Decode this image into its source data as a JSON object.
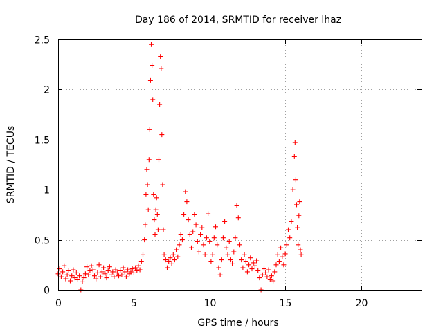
{
  "chart_data": {
    "type": "scatter",
    "title": "Day 186 of 2014, SRMTID for receiver lhaz",
    "xlabel": "GPS time / hours",
    "ylabel": "SRMTID / TECUs",
    "xlim": [
      0,
      24
    ],
    "ylim": [
      0,
      2.5
    ],
    "xticks": [
      0,
      5,
      10,
      15,
      20
    ],
    "xtick_labels": [
      "0",
      "5",
      "10",
      "15",
      "20"
    ],
    "yticks": [
      0,
      0.5,
      1,
      1.5,
      2,
      2.5
    ],
    "ytick_labels": [
      "0",
      "0.5",
      "1",
      "1.5",
      "2",
      "2.5"
    ],
    "grid": true,
    "marker": "+",
    "color": "#ff0000",
    "series": [
      {
        "name": "SRMTID",
        "points": [
          [
            0.0,
            0.16
          ],
          [
            0.1,
            0.21
          ],
          [
            0.2,
            0.13
          ],
          [
            0.3,
            0.18
          ],
          [
            0.4,
            0.24
          ],
          [
            0.5,
            0.11
          ],
          [
            0.6,
            0.15
          ],
          [
            0.7,
            0.19
          ],
          [
            0.8,
            0.09
          ],
          [
            0.9,
            0.14
          ],
          [
            1.0,
            0.2
          ],
          [
            1.1,
            0.12
          ],
          [
            1.2,
            0.17
          ],
          [
            1.3,
            0.1
          ],
          [
            1.4,
            0.14
          ],
          [
            1.5,
            0.0
          ],
          [
            1.6,
            0.08
          ],
          [
            1.7,
            0.12
          ],
          [
            1.8,
            0.16
          ],
          [
            1.9,
            0.23
          ],
          [
            2.0,
            0.15
          ],
          [
            2.1,
            0.19
          ],
          [
            2.2,
            0.24
          ],
          [
            2.3,
            0.2
          ],
          [
            2.4,
            0.14
          ],
          [
            2.5,
            0.11
          ],
          [
            2.6,
            0.17
          ],
          [
            2.7,
            0.25
          ],
          [
            2.8,
            0.13
          ],
          [
            2.9,
            0.18
          ],
          [
            3.0,
            0.22
          ],
          [
            3.1,
            0.16
          ],
          [
            3.2,
            0.12
          ],
          [
            3.3,
            0.19
          ],
          [
            3.4,
            0.23
          ],
          [
            3.5,
            0.15
          ],
          [
            3.6,
            0.18
          ],
          [
            3.7,
            0.13
          ],
          [
            3.8,
            0.2
          ],
          [
            3.9,
            0.17
          ],
          [
            4.0,
            0.14
          ],
          [
            4.1,
            0.19
          ],
          [
            4.2,
            0.15
          ],
          [
            4.3,
            0.22
          ],
          [
            4.4,
            0.18
          ],
          [
            4.5,
            0.13
          ],
          [
            4.6,
            0.2
          ],
          [
            4.7,
            0.16
          ],
          [
            4.8,
            0.18
          ],
          [
            4.9,
            0.21
          ],
          [
            5.0,
            0.17
          ],
          [
            5.1,
            0.22
          ],
          [
            5.2,
            0.19
          ],
          [
            5.3,
            0.24
          ],
          [
            5.4,
            0.2
          ],
          [
            5.5,
            0.28
          ],
          [
            5.6,
            0.35
          ],
          [
            5.7,
            0.5
          ],
          [
            5.75,
            0.65
          ],
          [
            5.8,
            0.95
          ],
          [
            5.85,
            1.2
          ],
          [
            5.9,
            1.05
          ],
          [
            5.95,
            0.8
          ],
          [
            6.0,
            1.3
          ],
          [
            6.05,
            1.6
          ],
          [
            6.1,
            2.09
          ],
          [
            6.15,
            2.45
          ],
          [
            6.2,
            2.24
          ],
          [
            6.25,
            1.9
          ],
          [
            6.3,
            0.95
          ],
          [
            6.35,
            0.7
          ],
          [
            6.4,
            0.55
          ],
          [
            6.45,
            0.8
          ],
          [
            6.5,
            0.92
          ],
          [
            6.55,
            0.75
          ],
          [
            6.6,
            0.6
          ],
          [
            6.65,
            1.3
          ],
          [
            6.7,
            1.85
          ],
          [
            6.75,
            2.33
          ],
          [
            6.8,
            2.21
          ],
          [
            6.85,
            1.55
          ],
          [
            6.9,
            1.05
          ],
          [
            6.95,
            0.6
          ],
          [
            7.0,
            0.35
          ],
          [
            7.1,
            0.3
          ],
          [
            7.2,
            0.22
          ],
          [
            7.3,
            0.28
          ],
          [
            7.4,
            0.32
          ],
          [
            7.5,
            0.26
          ],
          [
            7.6,
            0.35
          ],
          [
            7.7,
            0.3
          ],
          [
            7.8,
            0.4
          ],
          [
            7.9,
            0.33
          ],
          [
            8.0,
            0.45
          ],
          [
            8.1,
            0.55
          ],
          [
            8.2,
            0.5
          ],
          [
            8.3,
            0.75
          ],
          [
            8.4,
            0.98
          ],
          [
            8.5,
            0.88
          ],
          [
            8.6,
            0.7
          ],
          [
            8.7,
            0.55
          ],
          [
            8.8,
            0.42
          ],
          [
            8.9,
            0.58
          ],
          [
            9.0,
            0.75
          ],
          [
            9.1,
            0.65
          ],
          [
            9.2,
            0.48
          ],
          [
            9.3,
            0.38
          ],
          [
            9.4,
            0.55
          ],
          [
            9.5,
            0.62
          ],
          [
            9.6,
            0.45
          ],
          [
            9.7,
            0.35
          ],
          [
            9.8,
            0.52
          ],
          [
            9.9,
            0.76
          ],
          [
            10.0,
            0.48
          ],
          [
            10.1,
            0.28
          ],
          [
            10.2,
            0.35
          ],
          [
            10.3,
            0.52
          ],
          [
            10.4,
            0.63
          ],
          [
            10.5,
            0.45
          ],
          [
            10.6,
            0.22
          ],
          [
            10.7,
            0.15
          ],
          [
            10.8,
            0.3
          ],
          [
            10.9,
            0.52
          ],
          [
            11.0,
            0.68
          ],
          [
            11.1,
            0.42
          ],
          [
            11.2,
            0.35
          ],
          [
            11.3,
            0.48
          ],
          [
            11.4,
            0.3
          ],
          [
            11.5,
            0.26
          ],
          [
            11.6,
            0.38
          ],
          [
            11.7,
            0.52
          ],
          [
            11.8,
            0.84
          ],
          [
            11.9,
            0.72
          ],
          [
            12.0,
            0.45
          ],
          [
            12.1,
            0.3
          ],
          [
            12.2,
            0.22
          ],
          [
            12.3,
            0.35
          ],
          [
            12.4,
            0.28
          ],
          [
            12.5,
            0.18
          ],
          [
            12.6,
            0.25
          ],
          [
            12.7,
            0.32
          ],
          [
            12.8,
            0.21
          ],
          [
            12.9,
            0.27
          ],
          [
            13.0,
            0.24
          ],
          [
            13.1,
            0.29
          ],
          [
            13.2,
            0.19
          ],
          [
            13.3,
            0.12
          ],
          [
            13.4,
            0.0
          ],
          [
            13.5,
            0.15
          ],
          [
            13.6,
            0.21
          ],
          [
            13.7,
            0.17
          ],
          [
            13.8,
            0.13
          ],
          [
            13.9,
            0.2
          ],
          [
            14.0,
            0.1
          ],
          [
            14.1,
            0.14
          ],
          [
            14.2,
            0.09
          ],
          [
            14.3,
            0.18
          ],
          [
            14.4,
            0.25
          ],
          [
            14.5,
            0.35
          ],
          [
            14.6,
            0.28
          ],
          [
            14.7,
            0.42
          ],
          [
            14.8,
            0.33
          ],
          [
            14.9,
            0.25
          ],
          [
            15.0,
            0.36
          ],
          [
            15.1,
            0.45
          ],
          [
            15.2,
            0.6
          ],
          [
            15.3,
            0.52
          ],
          [
            15.4,
            0.68
          ],
          [
            15.5,
            1.0
          ],
          [
            15.6,
            1.33
          ],
          [
            15.65,
            1.47
          ],
          [
            15.7,
            1.1
          ],
          [
            15.75,
            0.85
          ],
          [
            15.8,
            0.62
          ],
          [
            15.85,
            0.45
          ],
          [
            15.9,
            0.74
          ],
          [
            15.95,
            0.88
          ],
          [
            16.0,
            0.4
          ],
          [
            16.05,
            0.35
          ]
        ]
      }
    ]
  }
}
